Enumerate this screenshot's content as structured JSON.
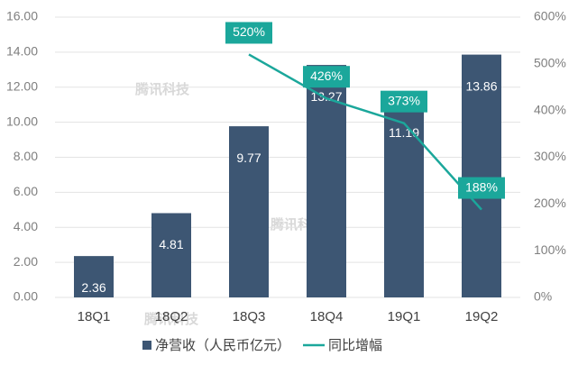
{
  "chart_data": {
    "type": "bar",
    "categories": [
      "18Q1",
      "18Q2",
      "18Q3",
      "18Q4",
      "19Q1",
      "19Q2"
    ],
    "series": [
      {
        "name": "净营收（人民币亿元）",
        "type": "bar",
        "color": "#3d5673",
        "values": [
          2.36,
          4.81,
          9.77,
          13.27,
          11.19,
          13.86
        ]
      },
      {
        "name": "同比增幅",
        "type": "line",
        "axis": "y2",
        "color": "#1ba79b",
        "values": [
          null,
          null,
          520,
          426,
          373,
          188
        ],
        "value_labels": [
          null,
          null,
          "520%",
          "426%",
          "373%",
          "188%"
        ]
      }
    ],
    "ylim": [
      0,
      16
    ],
    "yticks": [
      {
        "value": 0,
        "label": "0.00"
      },
      {
        "value": 2,
        "label": "2.00"
      },
      {
        "value": 4,
        "label": "4.00"
      },
      {
        "value": 6,
        "label": "6.00"
      },
      {
        "value": 8,
        "label": "8.00"
      },
      {
        "value": 10,
        "label": "10.00"
      },
      {
        "value": 12,
        "label": "12.00"
      },
      {
        "value": 14,
        "label": "14.00"
      },
      {
        "value": 16,
        "label": "16.00"
      }
    ],
    "y2lim": [
      0,
      600
    ],
    "y2ticks": [
      {
        "value": 0,
        "label": "0%"
      },
      {
        "value": 100,
        "label": "100%"
      },
      {
        "value": 200,
        "label": "200%"
      },
      {
        "value": 300,
        "label": "300%"
      },
      {
        "value": 400,
        "label": "400%"
      },
      {
        "value": 500,
        "label": "500%"
      },
      {
        "value": 600,
        "label": "600%"
      }
    ],
    "grid": true,
    "legend": "bottom",
    "watermark": "腾讯科技"
  }
}
